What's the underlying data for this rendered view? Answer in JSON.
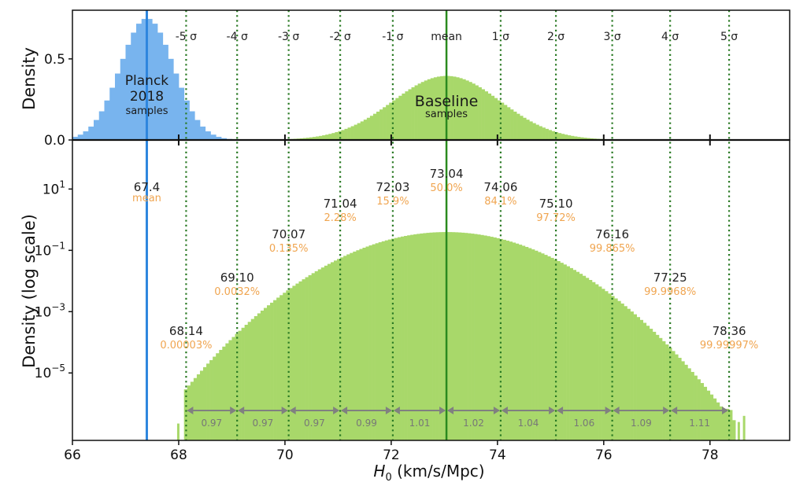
{
  "chart_data": {
    "type": "histogram",
    "xlabel_main": "H",
    "xlabel_sub": "0",
    "xlabel_units": " (km/s/Mpc)",
    "xlim": [
      66,
      79.5
    ],
    "xticks": [
      "66",
      "68",
      "70",
      "72",
      "74",
      "76",
      "78"
    ],
    "colors": {
      "planck": "#78b4ee",
      "planck_line": "#2e86de",
      "baseline": "#a8d86a",
      "baseline_line": "#2a8a1e",
      "sigma_line": "#2a7a24",
      "percent": "#f0a550",
      "gap": "#808080"
    },
    "top_panel": {
      "ylabel": "Density",
      "ylim": [
        0,
        0.8
      ],
      "yticks": [
        "0.0",
        "0.5"
      ]
    },
    "bottom_panel": {
      "ylabel": "Density (log scale)",
      "ylim_log10": [
        -7.2,
        2.6
      ],
      "yticks": [
        {
          "base": "10",
          "exp": "1"
        },
        {
          "base": "10",
          "exp": "−1"
        },
        {
          "base": "10",
          "exp": "−3"
        },
        {
          "base": "10",
          "exp": "−5"
        }
      ]
    },
    "planck": {
      "name": "Planck",
      "name2": "2018",
      "sub": "samples",
      "mean": 67.4,
      "sigma": 0.5,
      "mean_label": "67.4",
      "mean_sub": "mean"
    },
    "baseline": {
      "name": "Baseline",
      "sub": "samples",
      "mean": 73.04,
      "sigma": 1.01
    },
    "sigma_markers": [
      {
        "label": "-5 σ",
        "value": 68.14,
        "value_label": "68.14",
        "percent": "0.00003%"
      },
      {
        "label": "-4 σ",
        "value": 69.1,
        "value_label": "69.10",
        "percent": "0.0032%"
      },
      {
        "label": "-3 σ",
        "value": 70.07,
        "value_label": "70.07",
        "percent": "0.135%"
      },
      {
        "label": "-2 σ",
        "value": 71.04,
        "value_label": "71.04",
        "percent": "2.28%"
      },
      {
        "label": "-1 σ",
        "value": 72.03,
        "value_label": "72.03",
        "percent": "15.9%"
      },
      {
        "label": "mean",
        "value": 73.04,
        "value_label": "73.04",
        "percent": "50.0%"
      },
      {
        "label": "1 σ",
        "value": 74.06,
        "value_label": "74.06",
        "percent": "84.1%"
      },
      {
        "label": "2 σ",
        "value": 75.1,
        "value_label": "75.10",
        "percent": "97.72%"
      },
      {
        "label": "3 σ",
        "value": 76.16,
        "value_label": "76.16",
        "percent": "99.865%"
      },
      {
        "label": "4 σ",
        "value": 77.25,
        "value_label": "77.25",
        "percent": "99.9968%"
      },
      {
        "label": "5 σ",
        "value": 78.36,
        "value_label": "78.36",
        "percent": "99.99997%"
      }
    ],
    "gaps": [
      "0.97",
      "0.97",
      "0.97",
      "0.99",
      "1.01",
      "1.02",
      "1.04",
      "1.06",
      "1.09",
      "1.11"
    ]
  }
}
